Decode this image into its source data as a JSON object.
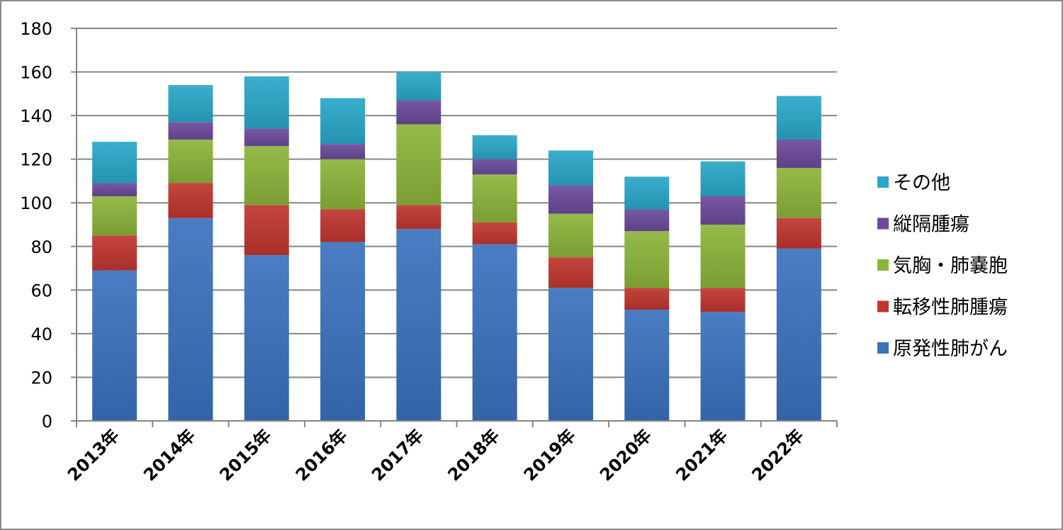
{
  "chart_data": {
    "type": "bar",
    "stacked": true,
    "categories": [
      "2013年",
      "2014年",
      "2015年",
      "2016年",
      "2017年",
      "2018年",
      "2019年",
      "2020年",
      "2021年",
      "2022年"
    ],
    "series": [
      {
        "name": "原発性肺がん",
        "color": "#3A72BE",
        "values": [
          69,
          93,
          76,
          82,
          88,
          81,
          61,
          51,
          50,
          79
        ]
      },
      {
        "name": "転移性肺腫瘍",
        "color": "#C0352F",
        "values": [
          16,
          16,
          23,
          15,
          11,
          10,
          14,
          10,
          11,
          14
        ]
      },
      {
        "name": "気胸・肺嚢胞",
        "color": "#8CB43A",
        "values": [
          18,
          20,
          27,
          23,
          37,
          22,
          20,
          26,
          29,
          23
        ]
      },
      {
        "name": "縦隔腫瘍",
        "color": "#6B4A9A",
        "values": [
          6,
          8,
          8,
          7,
          11,
          7,
          13,
          10,
          13,
          13
        ]
      },
      {
        "name": "その他",
        "color": "#2AA7C9",
        "values": [
          19,
          17,
          24,
          21,
          13,
          11,
          16,
          15,
          16,
          20
        ]
      }
    ],
    "ylim": [
      0,
      180
    ],
    "yticks": [
      0,
      20,
      40,
      60,
      80,
      100,
      120,
      140,
      160,
      180
    ],
    "grid": true,
    "legend": "right",
    "legend_order": [
      "その他",
      "縦隔腫瘍",
      "気胸・肺嚢胞",
      "転移性肺腫瘍",
      "原発性肺がん"
    ]
  }
}
